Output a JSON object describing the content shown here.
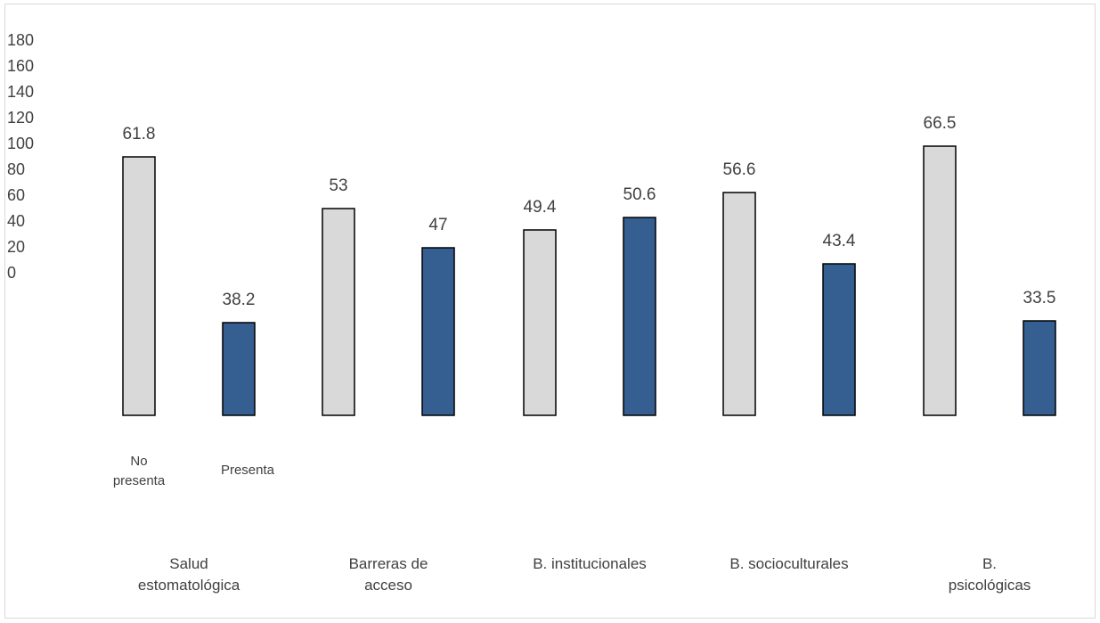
{
  "chart_data": {
    "type": "bar",
    "categories": [
      "Salud estomatológica",
      "Barreras de acceso",
      "B. institucionales",
      "B. socioculturales",
      "B. psicológicas"
    ],
    "category_labels": [
      [
        "Salud",
        "estomatológica"
      ],
      [
        "Barreras de",
        "acceso"
      ],
      [
        "B. institucionales"
      ],
      [
        "B. socioculturales"
      ],
      [
        "B.",
        "psicológicas"
      ]
    ],
    "sublabels": {
      "no_presenta": [
        "No",
        "presenta"
      ],
      "presenta": [
        "Presenta"
      ]
    },
    "series": [
      {
        "values": [
          145,
          116,
          104,
          125,
          151
        ],
        "labels": [
          "61.8",
          "53",
          "49.4",
          "56.6",
          "66.5"
        ],
        "color": "#d9d9d9"
      },
      {
        "values": [
          52,
          94,
          111,
          85,
          53
        ],
        "labels": [
          "38.2",
          "47",
          "50.6",
          "43.4",
          "33.5"
        ],
        "color": "#355e91"
      }
    ],
    "yticks": [
      "180",
      "160",
      "140",
      "120",
      "100",
      "80",
      "60",
      "40",
      "20",
      "0"
    ],
    "ylim": [
      0,
      180
    ],
    "legend": "none",
    "grid": false,
    "title": "",
    "xlabel": "",
    "ylabel": ""
  }
}
